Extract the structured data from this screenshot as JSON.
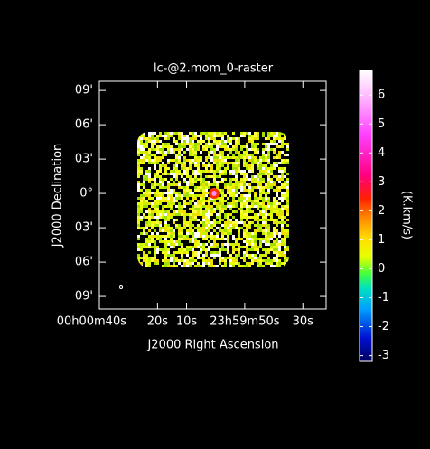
{
  "chart_data": {
    "type": "raster",
    "title": "lc-@2.mom_0-raster",
    "x_label": "J2000 Right Ascension",
    "y_label": "J2000 Declination",
    "colorbar_label": "(K.km/s)",
    "xlim": [
      40,
      -38
    ],
    "xticks": [
      {
        "value": 40,
        "label": "00h00m40s"
      },
      {
        "value": 20,
        "label": "20s"
      },
      {
        "value": 10,
        "label": "10s"
      },
      {
        "value": -10,
        "label": "23h59m50s"
      },
      {
        "value": -30,
        "label": "30s"
      }
    ],
    "ylim": [
      -10.1,
      9.8
    ],
    "yticks": [
      {
        "value": 9,
        "label": "09'"
      },
      {
        "value": 6,
        "label": "06'"
      },
      {
        "value": 3,
        "label": "03'"
      },
      {
        "value": 0,
        "label": "0°"
      },
      {
        "value": -3,
        "label": "03'"
      },
      {
        "value": -6,
        "label": "06'"
      },
      {
        "value": -9,
        "label": "09'"
      }
    ],
    "clim": [
      -3.2,
      6.85
    ],
    "cticks": [
      -3,
      -2,
      -1,
      0,
      1,
      2,
      3,
      4,
      5,
      6
    ]
  }
}
